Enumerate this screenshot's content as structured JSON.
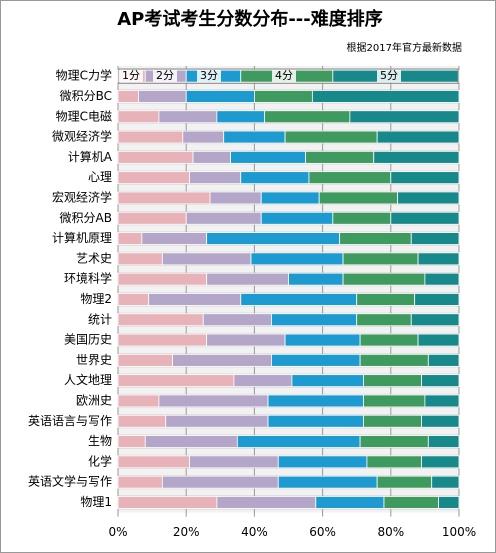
{
  "chart_data": {
    "type": "stacked-bar-horizontal",
    "title": "AP考试考生分数分布---难度排序",
    "subtitle": "根据2017年官方最新数据",
    "categories": [
      "物理C力学",
      "微积分BC",
      "物理C电磁",
      "微观经济学",
      "计算机A",
      "心理",
      "宏观经济学",
      "微积分AB",
      "计算机原理",
      "艺术史",
      "环境科学",
      "物理2",
      "统计",
      "美国历史",
      "世界史",
      "人文地理",
      "欧洲史",
      "英语语言与写作",
      "生物",
      "化学",
      "英语文学与写作",
      "物理1"
    ],
    "series": [
      {
        "name": "1分",
        "color": "#e8b3b8",
        "values": [
          8,
          6,
          12,
          19,
          22,
          21,
          27,
          20,
          7,
          13,
          26,
          9,
          25,
          26,
          16,
          34,
          12,
          14,
          8,
          21,
          13,
          29
        ]
      },
      {
        "name": "2分",
        "color": "#b3a6c8",
        "values": [
          12,
          14,
          17,
          12,
          11,
          15,
          15,
          22,
          19,
          26,
          24,
          27,
          20,
          23,
          29,
          17,
          32,
          30,
          27,
          26,
          34,
          29
        ]
      },
      {
        "name": "3分",
        "color": "#1d9bd0",
        "values": [
          16,
          20,
          14,
          18,
          22,
          20,
          17,
          21,
          39,
          27,
          16,
          34,
          25,
          22,
          26,
          21,
          28,
          28,
          36,
          26,
          29,
          20
        ]
      },
      {
        "name": "4分",
        "color": "#3e9a5e",
        "values": [
          27,
          17,
          25,
          27,
          20,
          24,
          23,
          17,
          21,
          22,
          24,
          17,
          16,
          17,
          20,
          17,
          18,
          17,
          20,
          16,
          16,
          16
        ]
      },
      {
        "name": "5分",
        "color": "#17898b",
        "values": [
          37,
          43,
          32,
          24,
          25,
          20,
          18,
          20,
          14,
          12,
          10,
          13,
          14,
          12,
          9,
          11,
          10,
          11,
          9,
          11,
          8,
          6
        ]
      }
    ],
    "xlim": [
      0,
      100
    ],
    "xticks": [
      {
        "value": 0,
        "label": "0%"
      },
      {
        "value": 20,
        "label": "20%"
      },
      {
        "value": 40,
        "label": "40%"
      },
      {
        "value": 60,
        "label": "60%"
      },
      {
        "value": 80,
        "label": "80%"
      },
      {
        "value": 100,
        "label": "100%"
      }
    ]
  }
}
